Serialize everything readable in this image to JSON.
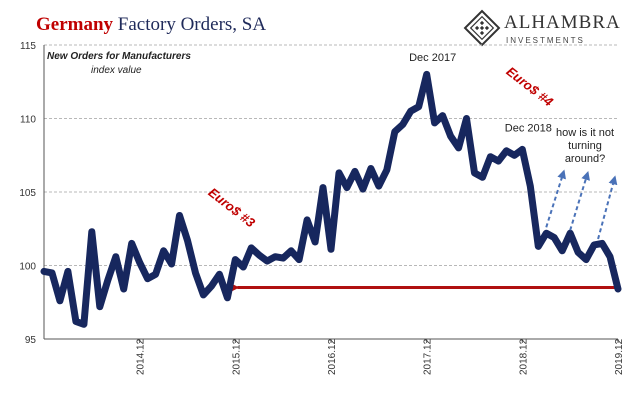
{
  "chart_data": {
    "type": "line",
    "title_accent": "Germany",
    "title_rest": "Factory Orders, SA",
    "note": {
      "series_label": "New Orders for Manufacturers",
      "unit_label": "index value"
    },
    "brand": {
      "name": "ALHAMBRA",
      "sub": "INVESTMENTS"
    },
    "ylim": [
      95,
      115
    ],
    "yticks": [
      "95",
      "100",
      "105",
      "110",
      "115"
    ],
    "ytick_values": [
      95,
      100,
      105,
      110,
      115
    ],
    "grid": "horizontal dashed",
    "xticks": [
      "2014.12",
      "2015.12",
      "2016.12",
      "2017.12",
      "2018.12",
      "2019.12"
    ],
    "xtick_months": [
      12,
      24,
      36,
      48,
      60,
      72
    ],
    "x_range_months": [
      0,
      72
    ],
    "x_start": "2013.12",
    "series": [
      {
        "color": "#17275e",
        "values": [
          99.6,
          99.5,
          97.6,
          99.6,
          96.2,
          96.0,
          102.3,
          97.2,
          99.0,
          100.6,
          98.4,
          101.5,
          100.2,
          99.1,
          99.4,
          101.0,
          100.1,
          103.4,
          101.7,
          99.5,
          98.0,
          98.6,
          99.4,
          97.8,
          100.4,
          99.9,
          101.2,
          100.7,
          100.3,
          100.6,
          100.5,
          101.0,
          100.4,
          103.1,
          101.6,
          105.3,
          101.1,
          106.3,
          105.3,
          106.4,
          105.2,
          106.6,
          105.4,
          106.5,
          109.1,
          109.6,
          110.5,
          110.8,
          113.0,
          109.7,
          110.2,
          108.8,
          108.0,
          110.0,
          106.3,
          106.0,
          107.4,
          107.1,
          107.8,
          107.5,
          107.9,
          105.4,
          101.3,
          102.2,
          101.9,
          101.0,
          102.2,
          100.9,
          100.4,
          101.4,
          101.5,
          100.6,
          98.4
        ]
      }
    ],
    "reference_line": {
      "value": 98.5,
      "x_from": 24,
      "x_to": 72,
      "color": "#b01010"
    },
    "annotations": [
      {
        "text": "Dec 2017",
        "x": 48,
        "y": 113.9
      },
      {
        "text": "Dec 2018",
        "x": 60,
        "y": 109.1
      }
    ],
    "regimes": [
      {
        "text": "Euro$ #3",
        "color": "#c00000"
      },
      {
        "text": "Euro$ #4",
        "color": "#c00000"
      }
    ],
    "question": [
      "how is it not",
      "turning",
      "around?"
    ],
    "arrows": [
      {
        "from": [
          63,
          102.6
        ],
        "to": [
          65.2,
          106.4
        ]
      },
      {
        "from": [
          66,
          102.4
        ],
        "to": [
          68.2,
          106.3
        ]
      },
      {
        "from": [
          69.5,
          101.8
        ],
        "to": [
          71.6,
          106.0
        ]
      }
    ]
  }
}
